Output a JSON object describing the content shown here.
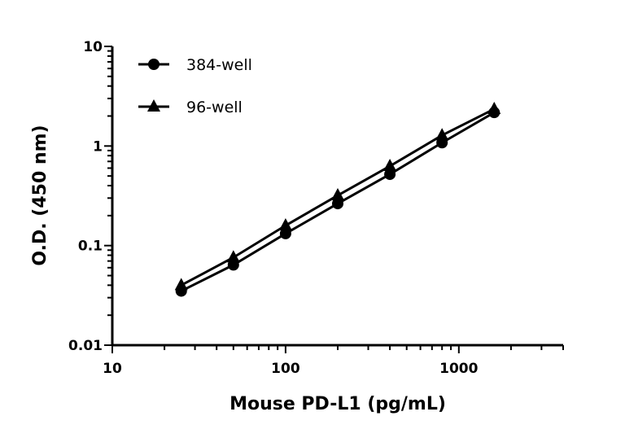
{
  "chart_data": {
    "type": "line",
    "xlabel": "Mouse PD-L1 (pg/mL)",
    "ylabel": "O.D. (450 nm)",
    "xscale": "log",
    "yscale": "log",
    "xlim": [
      10,
      4000
    ],
    "ylim": [
      0.01,
      10
    ],
    "xticks": [
      "10",
      "100",
      "1000"
    ],
    "yticks": [
      "0.01",
      "0.1",
      "1",
      "10"
    ],
    "grid": false,
    "legend_position": "top-left",
    "x": [
      25,
      50,
      100,
      200,
      400,
      800,
      1600
    ],
    "series": [
      {
        "name": "384-well",
        "marker": "circle",
        "color": "#000000",
        "values": [
          0.035,
          0.064,
          0.132,
          0.264,
          0.52,
          1.08,
          2.17
        ]
      },
      {
        "name": "96-well",
        "marker": "triangle",
        "color": "#000000",
        "values": [
          0.04,
          0.076,
          0.159,
          0.319,
          0.628,
          1.28,
          2.35
        ]
      }
    ]
  }
}
